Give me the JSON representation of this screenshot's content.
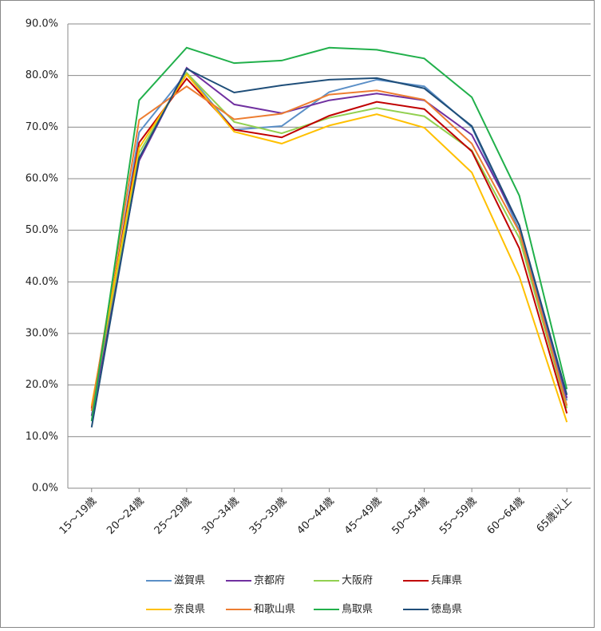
{
  "chart_data": {
    "type": "line",
    "categories": [
      "15～19歳",
      "20～24歳",
      "25～29歳",
      "30～34歳",
      "35～39歳",
      "40～44歳",
      "45～49歳",
      "50～54歳",
      "55～59歳",
      "60～64歳",
      "65歳以上"
    ],
    "series": [
      {
        "name": "滋賀県",
        "color": "#5b8fc7",
        "values": [
          13,
          69,
          80.5,
          69.5,
          70.2,
          76.8,
          79.2,
          77.9,
          70,
          50,
          17
        ]
      },
      {
        "name": "京都府",
        "color": "#7030a0",
        "values": [
          14,
          63.5,
          81.5,
          74.4,
          72.7,
          75.2,
          76.5,
          75.2,
          68.5,
          51,
          17.5
        ]
      },
      {
        "name": "大阪府",
        "color": "#92d050",
        "values": [
          15,
          65,
          80.5,
          71,
          68.8,
          71.8,
          73.7,
          72.1,
          65.5,
          48.5,
          15.5
        ]
      },
      {
        "name": "兵庫県",
        "color": "#c00000",
        "values": [
          15.5,
          67,
          79.4,
          69.5,
          68,
          72.2,
          74.9,
          73.5,
          65.3,
          46.5,
          14.5
        ]
      },
      {
        "name": "奈良県",
        "color": "#ffc000",
        "values": [
          16,
          66,
          80.2,
          69.1,
          66.8,
          70.3,
          72.5,
          69.9,
          61.2,
          41,
          12.8
        ]
      },
      {
        "name": "和歌山県",
        "color": "#ed7d31",
        "values": [
          15,
          71.4,
          77.9,
          71.5,
          72.6,
          76.3,
          77.1,
          75.3,
          66.8,
          49.7,
          16
        ]
      },
      {
        "name": "鳥取県",
        "color": "#21b04b",
        "values": [
          13,
          75.2,
          85.4,
          82.4,
          82.9,
          85.4,
          85,
          83.3,
          75.8,
          56.7,
          19.2
        ]
      },
      {
        "name": "徳島県",
        "color": "#1f4e79",
        "values": [
          11.8,
          64,
          81.3,
          76.7,
          78.1,
          79.2,
          79.5,
          77.5,
          70.2,
          50.9,
          18.1
        ]
      }
    ],
    "ylim": [
      0,
      90
    ],
    "yticks": [
      {
        "value": 0,
        "label": "0.0%"
      },
      {
        "value": 10,
        "label": "10.0%"
      },
      {
        "value": 20,
        "label": "20.0%"
      },
      {
        "value": 30,
        "label": "30.0%"
      },
      {
        "value": 40,
        "label": "40.0%"
      },
      {
        "value": 50,
        "label": "50.0%"
      },
      {
        "value": 60,
        "label": "60.0%"
      },
      {
        "value": 70,
        "label": "70.0%"
      },
      {
        "value": 80,
        "label": "80.0%"
      },
      {
        "value": 90,
        "label": "90.0%"
      }
    ],
    "grid": true
  }
}
